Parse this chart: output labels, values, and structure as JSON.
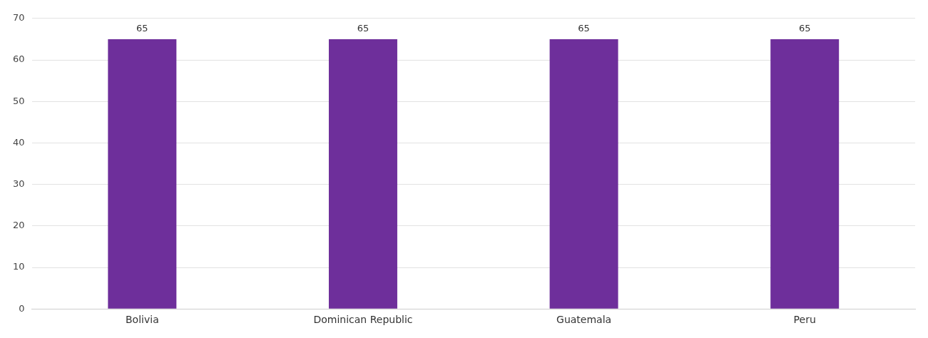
{
  "chart_data": {
    "type": "bar",
    "categories": [
      "Bolivia",
      "Dominican Republic",
      "Guatemala",
      "Peru"
    ],
    "values": [
      65,
      65,
      65,
      65
    ],
    "color": "#6e2f9b",
    "ylim": [
      0,
      70
    ],
    "yticks": [
      0,
      10,
      20,
      30,
      40,
      50,
      60,
      70
    ],
    "grid": "y",
    "data_labels": true,
    "legend": false
  }
}
